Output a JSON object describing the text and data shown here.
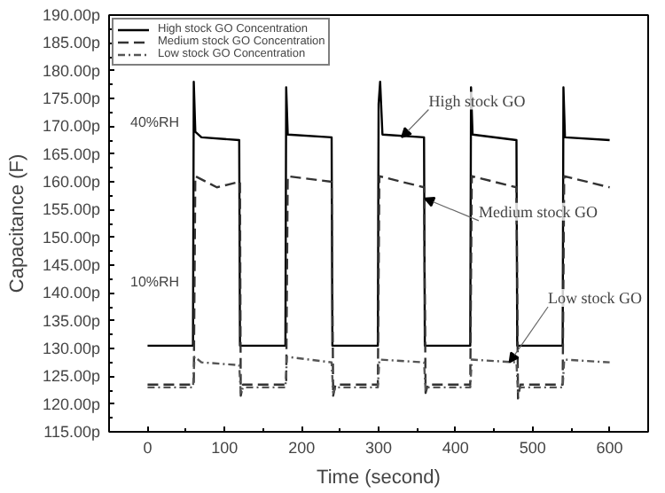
{
  "chart_data": {
    "type": "line",
    "xlabel": "Time (second)",
    "ylabel": "Capacitance (F)",
    "xlim": [
      -50,
      650
    ],
    "xticks": [
      0,
      100,
      200,
      300,
      400,
      500,
      600
    ],
    "ylim": [
      115,
      190
    ],
    "yticks": [
      {
        "value": 115,
        "label": "115.00p"
      },
      {
        "value": 120,
        "label": "120.00p"
      },
      {
        "value": 125,
        "label": "125.00p"
      },
      {
        "value": 130,
        "label": "130.00p"
      },
      {
        "value": 135,
        "label": "135.00p"
      },
      {
        "value": 140,
        "label": "140.00p"
      },
      {
        "value": 145,
        "label": "145.00p"
      },
      {
        "value": 150,
        "label": "150.00p"
      },
      {
        "value": 155,
        "label": "155.00p"
      },
      {
        "value": 160,
        "label": "160.00p"
      },
      {
        "value": 165,
        "label": "165.00p"
      },
      {
        "value": 170,
        "label": "170.00p"
      },
      {
        "value": 175,
        "label": "175.00p"
      },
      {
        "value": 180,
        "label": "180.00p"
      },
      {
        "value": 185,
        "label": "185.00p"
      },
      {
        "value": 190,
        "label": "190.00p"
      }
    ],
    "grid": false,
    "legend": "top left",
    "marker": "none",
    "series": [
      {
        "name": "High stock GO Concentration",
        "color": "#000000",
        "line_style": "solid",
        "x": [
          0,
          59,
          60,
          62,
          70,
          119,
          120,
          179,
          180,
          182,
          239,
          240,
          299,
          300,
          302,
          305,
          359,
          360,
          419,
          420,
          422,
          479,
          480,
          539,
          540,
          542,
          600
        ],
        "values": [
          130.5,
          130.5,
          178,
          169,
          168,
          167.5,
          130.5,
          130.5,
          177,
          168.5,
          168,
          130.5,
          130.5,
          174,
          178,
          168.5,
          168,
          130.5,
          130.5,
          177,
          168.5,
          167.5,
          130.5,
          130.5,
          177,
          168,
          167.5
        ]
      },
      {
        "name": "Medium stock GO Concentration",
        "color": "#333333",
        "line_style": "dashed",
        "x": [
          0,
          59,
          60,
          62,
          90,
          119,
          120,
          121,
          124,
          179,
          180,
          182,
          239,
          241,
          244,
          299,
          301,
          359,
          361,
          364,
          419,
          421,
          479,
          481,
          484,
          539,
          541,
          600
        ],
        "values": [
          123.5,
          123.5,
          123.5,
          161,
          159,
          160,
          160,
          121.5,
          123.5,
          123.5,
          123.5,
          161,
          160,
          121.5,
          123.5,
          123.5,
          161,
          159,
          122,
          123.5,
          123.5,
          161,
          159,
          121,
          123.5,
          123.5,
          161,
          159
        ]
      },
      {
        "name": "Low stock GO Concentration",
        "color": "#555555",
        "line_style": "dotted",
        "x": [
          0,
          59,
          61,
          70,
          119,
          121,
          124,
          179,
          181,
          239,
          241,
          244,
          299,
          301,
          359,
          361,
          364,
          419,
          421,
          479,
          481,
          484,
          539,
          541,
          600
        ],
        "values": [
          123,
          123,
          128.5,
          127.5,
          127,
          122,
          123,
          123,
          128.5,
          127.5,
          122,
          123,
          123,
          128,
          127.5,
          122.5,
          123,
          123,
          128,
          127.5,
          122,
          123,
          123,
          128,
          127.5
        ]
      }
    ],
    "annotations": [
      "40%RH",
      "10%RH",
      {
        "text": "High stock GO",
        "x": 330,
        "y": 168
      },
      {
        "text": "Medium stock GO",
        "x": 360,
        "y": 157
      },
      {
        "text": "Low stock GO",
        "x": 470,
        "y": 127.5
      }
    ]
  }
}
